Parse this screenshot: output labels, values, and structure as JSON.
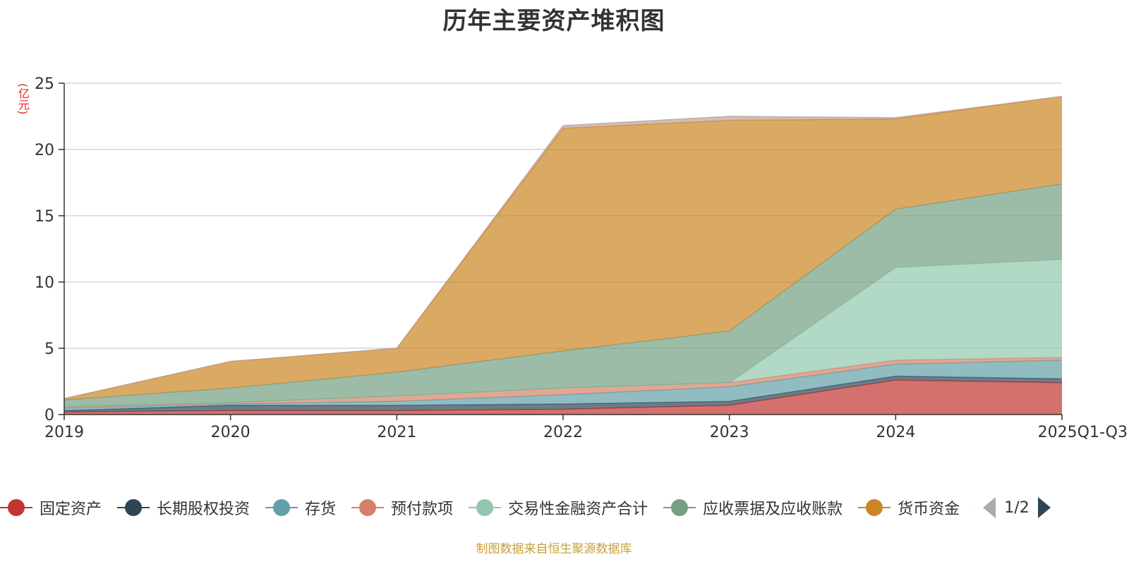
{
  "chart_data": {
    "type": "area",
    "stacked": true,
    "title": "历年主要资产堆积图",
    "ylabel": "(亿元)",
    "ylim": [
      0,
      25
    ],
    "yticks": [
      0,
      5,
      10,
      15,
      20,
      25
    ],
    "categories": [
      "2019",
      "2020",
      "2021",
      "2022",
      "2023",
      "2024",
      "2025Q1-Q3"
    ],
    "series": [
      {
        "name": "固定资产",
        "color": "#c23531",
        "values": [
          0.2,
          0.3,
          0.3,
          0.4,
          0.7,
          2.6,
          2.4
        ]
      },
      {
        "name": "长期股权投资",
        "color": "#2f4554",
        "values": [
          0.1,
          0.4,
          0.4,
          0.4,
          0.3,
          0.3,
          0.3
        ]
      },
      {
        "name": "存货",
        "color": "#61a0a8",
        "values": [
          0.2,
          0.1,
          0.3,
          0.7,
          1.1,
          0.9,
          1.4
        ]
      },
      {
        "name": "预付款项",
        "color": "#d48265",
        "values": [
          0.1,
          0.1,
          0.4,
          0.5,
          0.3,
          0.3,
          0.2
        ]
      },
      {
        "name": "交易性金融资产合计",
        "color": "#91c7ae",
        "values": [
          0,
          0,
          0,
          0,
          0,
          7.0,
          7.4
        ]
      },
      {
        "name": "应收票据及应收账款",
        "color": "#749f83",
        "values": [
          0.5,
          1.1,
          1.8,
          2.8,
          3.9,
          4.4,
          5.7
        ]
      },
      {
        "name": "货币资金",
        "color": "#ca8622",
        "values": [
          0.1,
          2.0,
          1.8,
          16.8,
          15.9,
          6.8,
          6.6
        ]
      },
      {
        "name": "",
        "color": "#bda29a",
        "values": [
          0,
          0,
          0,
          0.2,
          0.3,
          0.1,
          0
        ]
      }
    ]
  },
  "legend": {
    "items": [
      {
        "label": "固定资产",
        "color": "#c23531"
      },
      {
        "label": "长期股权投资",
        "color": "#2f4554"
      },
      {
        "label": "存货",
        "color": "#61a0a8"
      },
      {
        "label": "预付款项",
        "color": "#d48265"
      },
      {
        "label": "交易性金融资产合计",
        "color": "#91c7ae"
      },
      {
        "label": "应收票据及应收账款",
        "color": "#749f83"
      },
      {
        "label": "货币资金",
        "color": "#ca8622"
      }
    ],
    "page_indicator": "1/2"
  },
  "source_note": "制图数据来自恒生聚源数据库"
}
